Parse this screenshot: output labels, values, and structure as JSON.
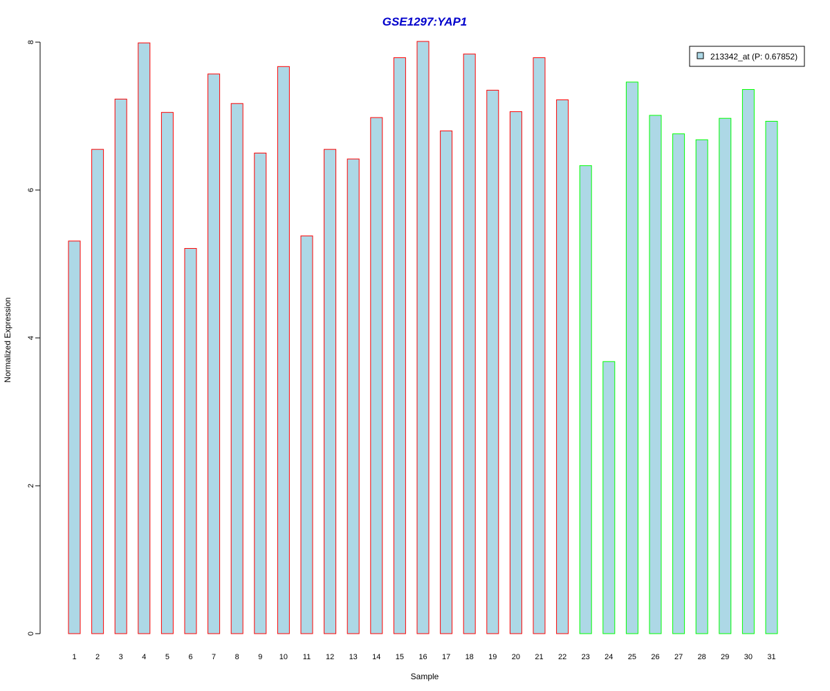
{
  "chart_data": {
    "type": "bar",
    "title": "GSE1297:YAP1",
    "xlabel": "Sample",
    "ylabel": "Normalized Expression",
    "categories": [
      "1",
      "2",
      "3",
      "4",
      "5",
      "6",
      "7",
      "8",
      "9",
      "10",
      "11",
      "12",
      "13",
      "14",
      "15",
      "16",
      "17",
      "18",
      "19",
      "20",
      "21",
      "22",
      "23",
      "24",
      "25",
      "26",
      "27",
      "28",
      "29",
      "30",
      "31"
    ],
    "values": [
      5.31,
      6.55,
      7.23,
      7.99,
      7.05,
      5.21,
      7.57,
      7.17,
      6.5,
      7.67,
      5.38,
      6.55,
      6.42,
      6.98,
      7.79,
      8.01,
      6.8,
      7.84,
      7.35,
      7.06,
      7.79,
      7.22,
      6.33,
      3.68,
      7.46,
      7.01,
      6.76,
      6.68,
      6.97,
      7.36,
      6.93
    ],
    "groups": [
      "red",
      "red",
      "red",
      "red",
      "red",
      "red",
      "red",
      "red",
      "red",
      "red",
      "red",
      "red",
      "red",
      "red",
      "red",
      "red",
      "red",
      "red",
      "red",
      "red",
      "red",
      "red",
      "green",
      "green",
      "green",
      "green",
      "green",
      "green",
      "green",
      "green",
      "green"
    ],
    "yticks": [
      "0",
      "2",
      "4",
      "6",
      "8"
    ],
    "ylim": [
      0,
      8
    ],
    "legend": {
      "label": "213342_at (P: 0.67852)",
      "position": "top-right"
    },
    "colors": {
      "bar_fill": "#add8e6",
      "group_red": "#ff0000",
      "group_green": "#00ff00",
      "title": "#0000cc"
    },
    "grid": false
  }
}
